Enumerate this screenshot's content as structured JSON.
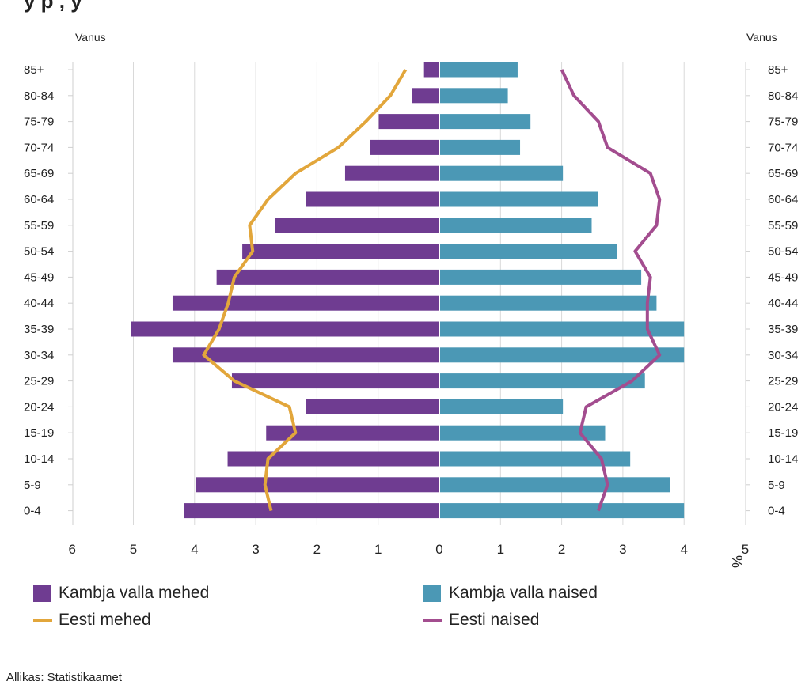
{
  "title_fragment": "y                  p     ,  y",
  "chart_data": {
    "type": "bar",
    "orientation": "horizontal",
    "left_axis_label": "Vanus",
    "right_axis_label": "Vanus",
    "x_unit_label": "%",
    "categories": [
      "85+",
      "80-84",
      "75-79",
      "70-74",
      "65-69",
      "60-64",
      "55-59",
      "50-54",
      "45-49",
      "40-44",
      "35-39",
      "30-34",
      "25-29",
      "20-24",
      "15-19",
      "10-14",
      "5-9",
      "0-4"
    ],
    "right_categories_visible": [
      "85+",
      "80-84",
      "75-79",
      "70-74",
      "65-69",
      "60-64",
      "55-59",
      "50-54",
      "45-49",
      "40-44",
      "35-39",
      "30-34",
      "25-29",
      "20-24",
      "15-19",
      "10-14",
      "5-9",
      "0-4"
    ],
    "x_ticks_left": [
      "6",
      "5",
      "4",
      "3",
      "2",
      "1"
    ],
    "x_ticks_right": [
      "0",
      "1",
      "2",
      "3",
      "4",
      "5"
    ],
    "xlim": [
      -6,
      5
    ],
    "grid": true,
    "series": [
      {
        "name": "Kambja valla mehed",
        "kind": "bar",
        "side": "left",
        "color": "#6f3c91",
        "values": [
          0.25,
          0.45,
          0.99,
          1.13,
          1.54,
          2.18,
          2.69,
          3.22,
          3.64,
          4.36,
          5.04,
          4.36,
          3.39,
          2.18,
          2.83,
          3.46,
          3.98,
          4.17
        ]
      },
      {
        "name": "Kambja valla naised",
        "kind": "bar",
        "side": "right",
        "color": "#4b98b5",
        "values": [
          1.28,
          1.12,
          1.49,
          1.32,
          2.02,
          2.6,
          2.49,
          2.91,
          3.3,
          3.55,
          4.0,
          4.0,
          3.36,
          2.02,
          2.71,
          3.12,
          3.77,
          4.0
        ]
      },
      {
        "name": "Eesti mehed",
        "kind": "line",
        "side": "left",
        "color": "#e2a63b",
        "values": [
          0.55,
          0.8,
          1.2,
          1.65,
          2.35,
          2.8,
          3.1,
          3.05,
          3.35,
          3.45,
          3.6,
          3.85,
          3.35,
          2.45,
          2.35,
          2.8,
          2.85,
          2.75
        ]
      },
      {
        "name": "Eesti naised",
        "kind": "line",
        "side": "right",
        "color": "#a34d8f",
        "values": [
          2.0,
          2.2,
          2.6,
          2.75,
          3.45,
          3.6,
          3.55,
          3.2,
          3.45,
          3.4,
          3.4,
          3.6,
          3.15,
          2.4,
          2.3,
          2.65,
          2.75,
          2.6
        ]
      }
    ]
  },
  "legend": {
    "item1": "Kambja valla mehed",
    "item2": "Kambja valla naised",
    "item3": "Eesti mehed",
    "item4": "Eesti naised"
  },
  "source": "Allikas: Statistikaamet"
}
